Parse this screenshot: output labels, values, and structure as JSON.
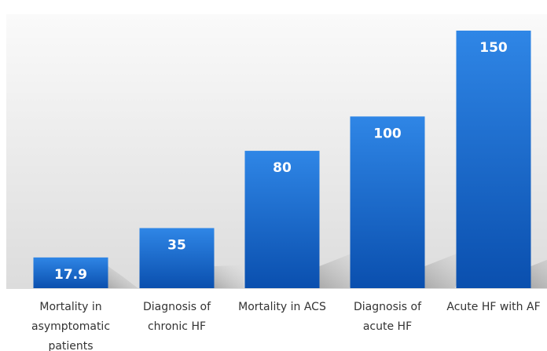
{
  "chart_data": {
    "type": "bar",
    "categories": [
      [
        "Mortality in",
        "asymptomatic",
        "patients"
      ],
      [
        "Diagnosis of",
        "chronic HF"
      ],
      [
        "Mortality in ACS"
      ],
      [
        "Diagnosis of",
        "acute HF"
      ],
      [
        "Acute HF with AF"
      ]
    ],
    "values": [
      17.9,
      35,
      80,
      100,
      150
    ],
    "value_labels": [
      "17.9",
      "35",
      "80",
      "100",
      "150"
    ],
    "ylim": [
      0,
      150
    ],
    "grid": false,
    "legend": "none",
    "colors": {
      "bar_top": "#2f86e6",
      "bar_bottom": "#0a4fae",
      "value_label": "#ffffff",
      "category_label": "#333333",
      "background_top": "#fafafa",
      "background_bottom": "#dcdcdc"
    }
  }
}
